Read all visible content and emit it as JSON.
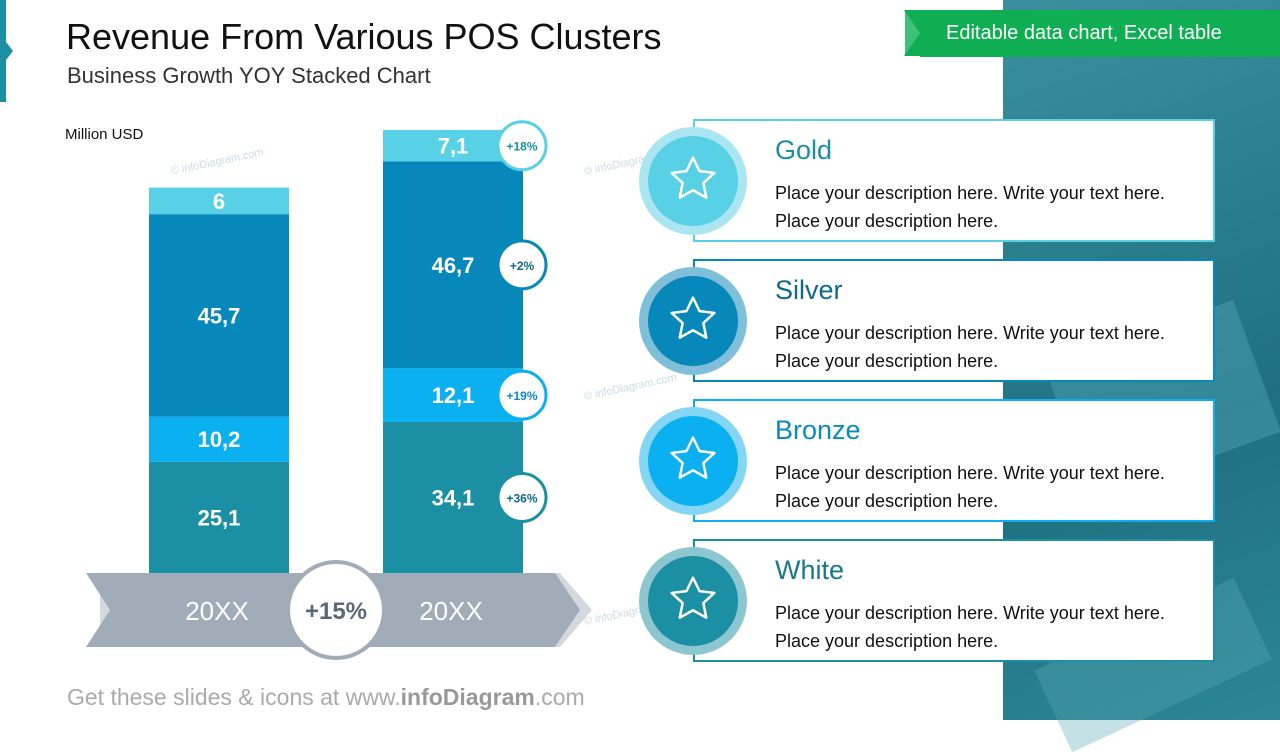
{
  "header": {
    "title": "Revenue From Various POS Clusters",
    "subtitle": "Business Growth YOY Stacked Chart",
    "banner": "Editable data chart, Excel table"
  },
  "footer": {
    "prefix": "Get these slides & icons at www.",
    "brand": "infoDiagram",
    ".com": ".com",
    "suffix": ".com"
  },
  "watermark": "© infoDiagram.com",
  "chart_data": {
    "type": "bar",
    "stacked": true,
    "ylabel": "Million USD",
    "categories": [
      "20XX",
      "20XX"
    ],
    "series": [
      {
        "name": "White",
        "color": "#1b8fa3",
        "values": [
          25.1,
          34.1
        ],
        "labels": [
          "25,1",
          "34,1"
        ],
        "growth": "+36%"
      },
      {
        "name": "Bronze",
        "color": "#0ab0f0",
        "values": [
          10.2,
          12.1
        ],
        "labels": [
          "10,2",
          "12,1"
        ],
        "growth": "+19%"
      },
      {
        "name": "Silver",
        "color": "#0788bb",
        "values": [
          45.7,
          46.7
        ],
        "labels": [
          "45,7",
          "46,7"
        ],
        "growth": "+2%"
      },
      {
        "name": "Gold",
        "color": "#58d0e6",
        "values": [
          6,
          7.1
        ],
        "labels": [
          "6",
          "7,1"
        ],
        "growth": "+18%"
      }
    ],
    "total_growth": "+15%"
  },
  "legend": [
    {
      "title": "Gold",
      "desc": "Place your description here. Write your text here. Place your description here.",
      "color": "#58d0e6",
      "ring": "#a9e6f1",
      "text": "#1b8fa3",
      "icon": "star-icon"
    },
    {
      "title": "Silver",
      "desc": "Place your description here. Write your text here. Place your description here.",
      "color": "#0788bb",
      "ring": "#7fbfda",
      "text": "#0c6a8c",
      "icon": "star-icon"
    },
    {
      "title": "Bronze",
      "desc": "Place your description here. Write your text here. Place your description here.",
      "color": "#0ab0f0",
      "ring": "#84d6f6",
      "text": "#0a8ac0",
      "icon": "star-icon"
    },
    {
      "title": "White",
      "desc": "Place your description here. Write your text here. Place your description here.",
      "color": "#1b8fa3",
      "ring": "#8cc6d0",
      "text": "#17798b",
      "icon": "star-icon"
    }
  ]
}
